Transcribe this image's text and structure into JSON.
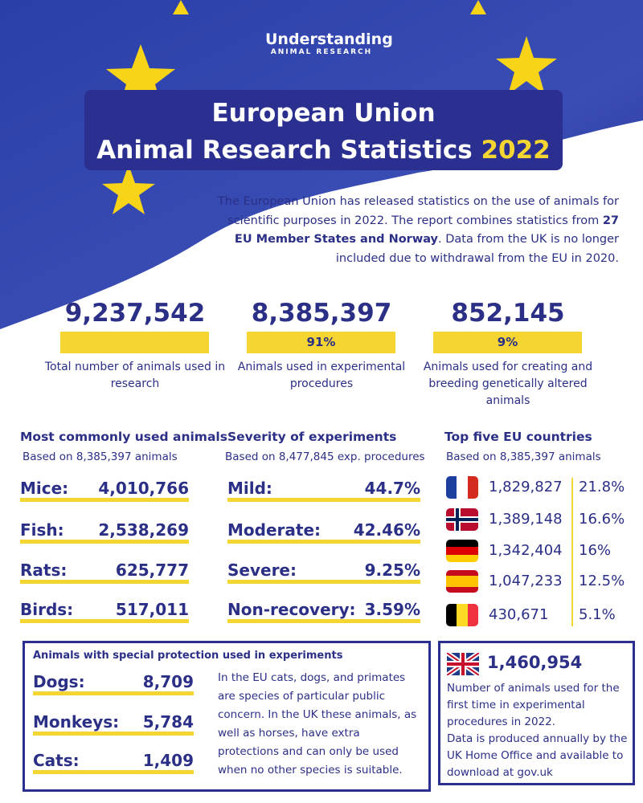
{
  "logo": {
    "line1": "Understanding",
    "line2": "ANIMAL RESEARCH"
  },
  "title": {
    "line1": "European Union",
    "line2": "Animal Research Statistics",
    "year": "2022"
  },
  "intro": {
    "before": "The European Union has released statistics on the use of animals for scientific purposes in 2022. The report combines statistics from ",
    "bold": "27 EU Member States and Norway",
    "after": ". Data from the UK is no longer included due to withdrawal from the EU in 2020."
  },
  "headline_stats": [
    {
      "value": "9,237,542",
      "label": "Total number of animals used in research"
    },
    {
      "value": "8,385,397",
      "percent": "91%",
      "label": "Animals used in experimental procedures"
    },
    {
      "value": "852,145",
      "percent": "9%",
      "label": "Animals used for creating and breeding genetically altered animals"
    }
  ],
  "most_common": {
    "title": "Most commonly used animals",
    "subtitle": "Based on 8,385,397 animals",
    "rows": [
      [
        "Mice:",
        "4,010,766"
      ],
      [
        "Fish:",
        "2,538,269"
      ],
      [
        "Rats:",
        "625,777"
      ],
      [
        "Birds:",
        "517,011"
      ]
    ]
  },
  "severity": {
    "title": "Severity of experiments",
    "subtitle": "Based on 8,477,845 exp. procedures",
    "rows": [
      [
        "Mild:",
        "44.7%"
      ],
      [
        "Moderate:",
        "42.46%"
      ],
      [
        "Severe:",
        "9.25%"
      ],
      [
        "Non-recovery:",
        "3.59%"
      ]
    ]
  },
  "countries": {
    "title": "Top five EU countries",
    "subtitle": "Based on 8,385,397 animals",
    "rows": [
      [
        "1,829,827",
        "21.8%"
      ],
      [
        "1,389,148",
        "16.6%"
      ],
      [
        "1,342,404",
        "16%"
      ],
      [
        "1,047,233",
        "12.5%"
      ],
      [
        "430,671",
        "5.1%"
      ]
    ]
  },
  "special_protection": {
    "title": "Animals with special protection used in experiments",
    "rows": [
      [
        "Dogs:",
        "8,709"
      ],
      [
        "Monkeys:",
        "5,784"
      ],
      [
        "Cats:",
        "1,409"
      ]
    ],
    "note": "In the EU cats, dogs, and primates are species of particular public concern. In the UK these animals, as well as horses, have extra protections and can only be used when no other species is suitable."
  },
  "uk": {
    "value": "1,460,954",
    "text1": "Number of animals used for the first time in experimental procedures in 2022.",
    "text2": "Data is produced annually by the UK Home Office and available to download at gov.uk"
  }
}
